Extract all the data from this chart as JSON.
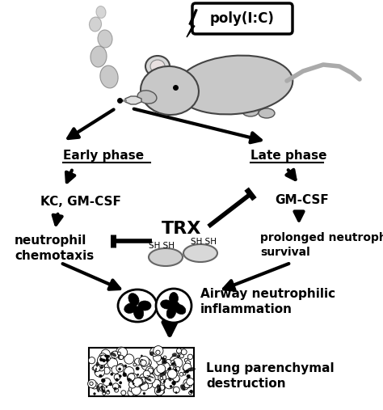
{
  "background_color": "#ffffff",
  "poly_ic_label": "poly(I:C)",
  "early_phase_label": "Early phase",
  "late_phase_label": "Late phase",
  "kc_gmcsf_label": "KC, GM-CSF",
  "gmcsf_label": "GM-CSF",
  "neutrophil_chemotaxis_label": "neutrophil\nchemotaxis",
  "trx_label": "TRX",
  "prolonged_label": "prolonged neutrophil\nsurvival",
  "airway_label": "Airway neutrophilic\ninflammation",
  "lung_label": "Lung parenchymal\ndestruction",
  "mouse_body_color": "#b8b8b8",
  "mouse_outline_color": "#555555",
  "smoke_color": "#999999",
  "trx_ellipse_color": "#cccccc"
}
